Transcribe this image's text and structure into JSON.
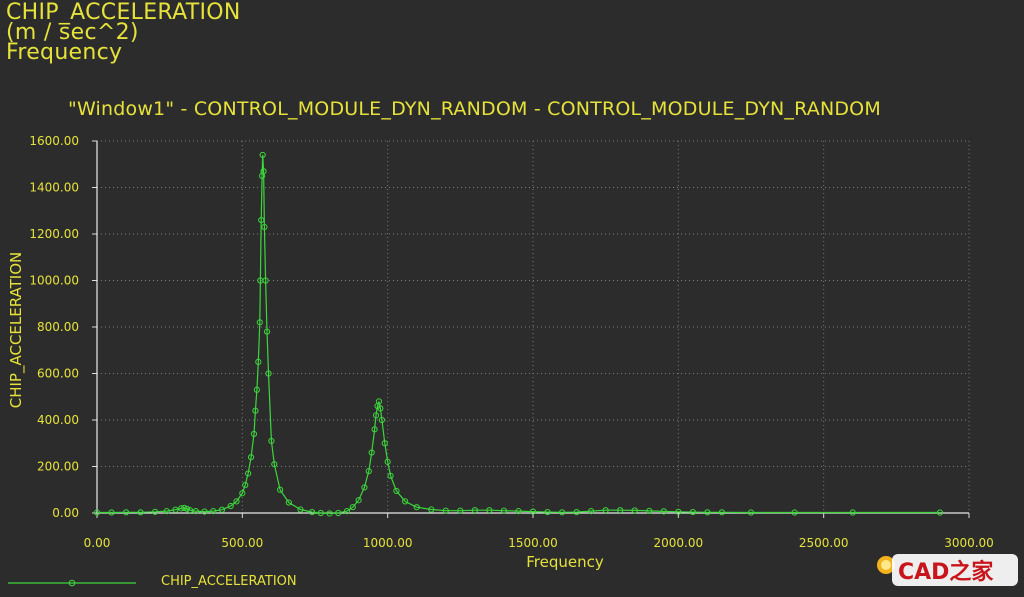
{
  "header": {
    "quantity": "CHIP_ACCELERATION",
    "units": "(m / sec^2)",
    "x_quantity": "Frequency"
  },
  "watermark": {
    "text": "CAD之家"
  },
  "colors": {
    "background": "#2c2c2c",
    "text": "#e6e23a",
    "series": "#3dd63d",
    "grid": "#7a7a7a"
  },
  "chart_data": {
    "type": "line",
    "title": "\"Window1\" - CONTROL_MODULE_DYN_RANDOM - CONTROL_MODULE_DYN_RANDOM",
    "xlabel": "Frequency",
    "ylabel": "CHIP_ACCELERATION",
    "xlim": [
      0,
      3000
    ],
    "ylim": [
      0,
      1600
    ],
    "x_ticks": [
      "0.00",
      "500.00",
      "1000.00",
      "1500.00",
      "2000.00",
      "2500.00",
      "3000.00"
    ],
    "y_ticks": [
      "0.00",
      "200.00",
      "400.00",
      "600.00",
      "800.00",
      "1000.00",
      "1200.00",
      "1400.00",
      "1600.00"
    ],
    "grid": true,
    "legend_position": "bottom-left",
    "series": [
      {
        "name": "CHIP_ACCELERATION",
        "x": [
          0,
          50,
          100,
          150,
          200,
          240,
          270,
          290,
          300,
          310,
          320,
          340,
          370,
          400,
          430,
          460,
          480,
          500,
          510,
          520,
          530,
          540,
          545,
          550,
          555,
          560,
          562,
          565,
          568,
          570,
          573,
          576,
          580,
          585,
          590,
          600,
          610,
          630,
          660,
          700,
          740,
          770,
          800,
          830,
          860,
          880,
          900,
          920,
          935,
          945,
          955,
          960,
          965,
          970,
          975,
          980,
          990,
          1000,
          1010,
          1030,
          1060,
          1100,
          1150,
          1200,
          1250,
          1300,
          1350,
          1400,
          1450,
          1500,
          1550,
          1600,
          1650,
          1700,
          1750,
          1800,
          1850,
          1900,
          1950,
          2000,
          2050,
          2100,
          2150,
          2250,
          2400,
          2600,
          2900
        ],
        "values": [
          2,
          2,
          3,
          3,
          5,
          8,
          14,
          20,
          22,
          18,
          12,
          8,
          6,
          8,
          14,
          30,
          50,
          85,
          120,
          170,
          240,
          340,
          440,
          530,
          650,
          820,
          1000,
          1260,
          1450,
          1540,
          1470,
          1230,
          1000,
          780,
          600,
          310,
          210,
          100,
          45,
          15,
          4,
          0,
          -2,
          0,
          8,
          25,
          55,
          110,
          180,
          260,
          360,
          420,
          460,
          480,
          450,
          400,
          300,
          220,
          160,
          95,
          50,
          25,
          15,
          10,
          10,
          12,
          12,
          10,
          8,
          6,
          4,
          3,
          4,
          8,
          12,
          12,
          11,
          9,
          7,
          5,
          4,
          3,
          3,
          2,
          2,
          2,
          2
        ]
      }
    ]
  }
}
